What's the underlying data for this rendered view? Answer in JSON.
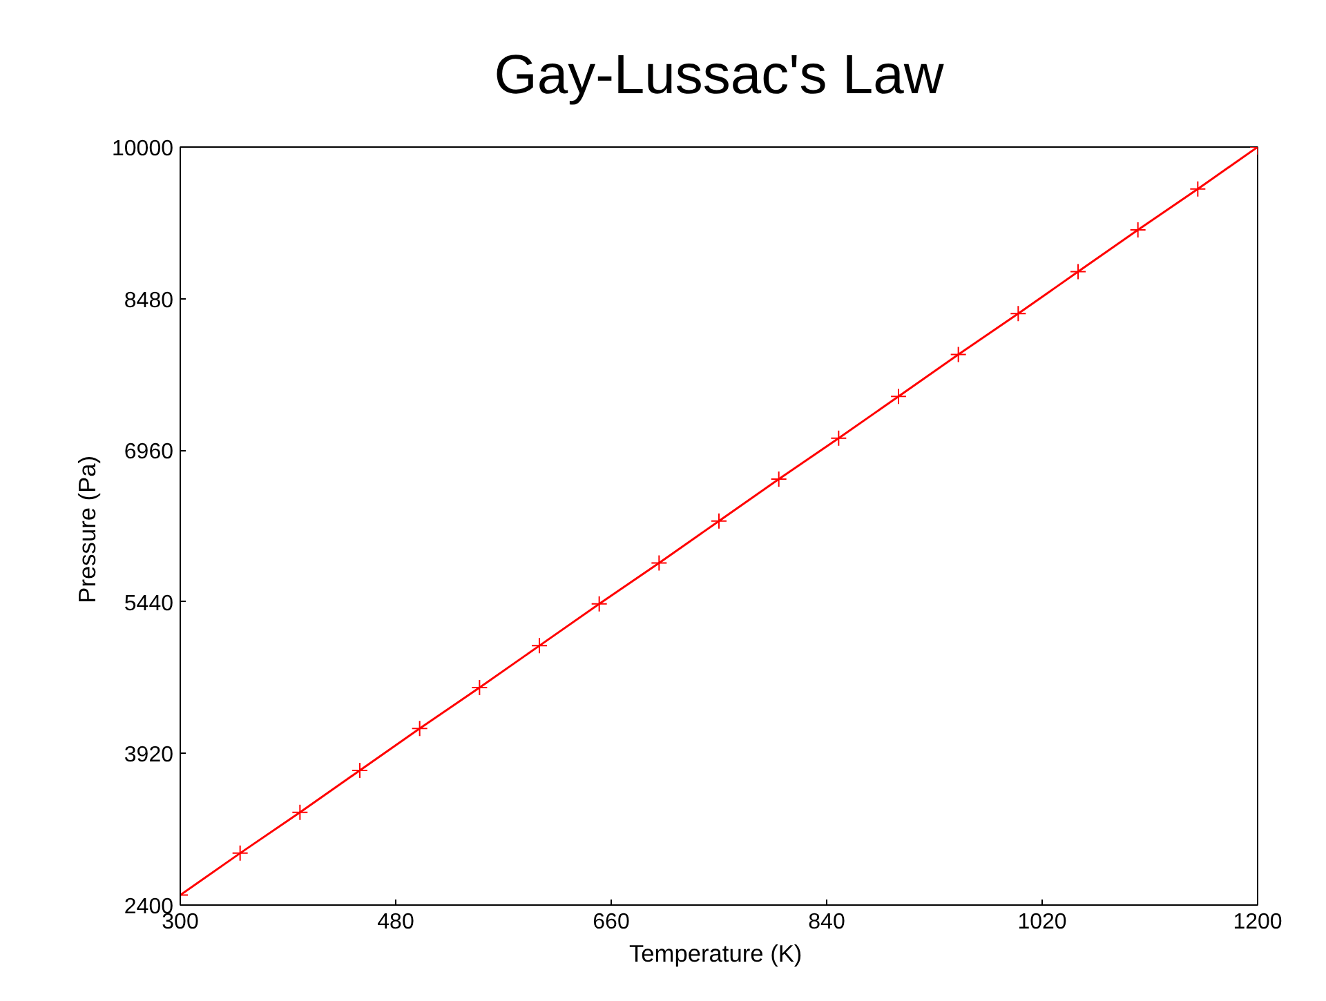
{
  "chart_data": {
    "type": "line",
    "title": "Gay-Lussac's Law",
    "xlabel": "Temperature  (K)",
    "ylabel": "Pressure  (Pa)",
    "x": [
      300,
      350,
      400,
      450,
      500,
      550,
      600,
      650,
      700,
      750,
      800,
      850,
      900,
      950,
      1000,
      1050,
      1100,
      1150,
      1200
    ],
    "series": [
      {
        "color": "#ff0000",
        "values": [
          2500,
          2920,
          3330,
          3750,
          4170,
          4580,
          5000,
          5420,
          5830,
          6250,
          6670,
          7080,
          7500,
          7920,
          8330,
          8750,
          9170,
          9580,
          10000
        ]
      }
    ],
    "xlim": [
      300,
      1200
    ],
    "xticks": [
      300,
      480,
      660,
      840,
      1020,
      1200
    ],
    "ylim": [
      2400,
      10000
    ],
    "yticks": [
      2400,
      3920,
      5440,
      6960,
      8480,
      10000
    ],
    "grid": false,
    "marker": "cross",
    "line_style": "solid"
  }
}
